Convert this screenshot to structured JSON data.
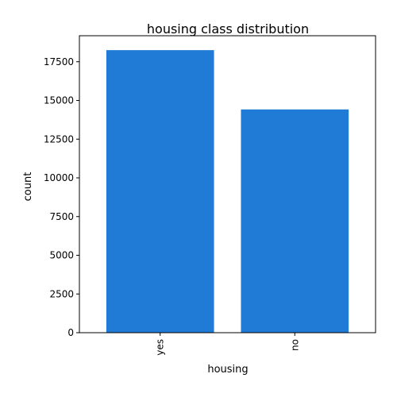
{
  "chart_data": {
    "type": "bar",
    "title": "housing class distribution",
    "xlabel": "housing",
    "ylabel": "count",
    "categories": [
      "yes",
      "no"
    ],
    "values": [
      18250,
      14420
    ],
    "ylim": [
      0,
      19180
    ],
    "yticks": [
      0,
      2500,
      5000,
      7500,
      10000,
      12500,
      15000,
      17500
    ],
    "bar_color": "#1f7bd6",
    "grid": false,
    "legend": "none"
  }
}
